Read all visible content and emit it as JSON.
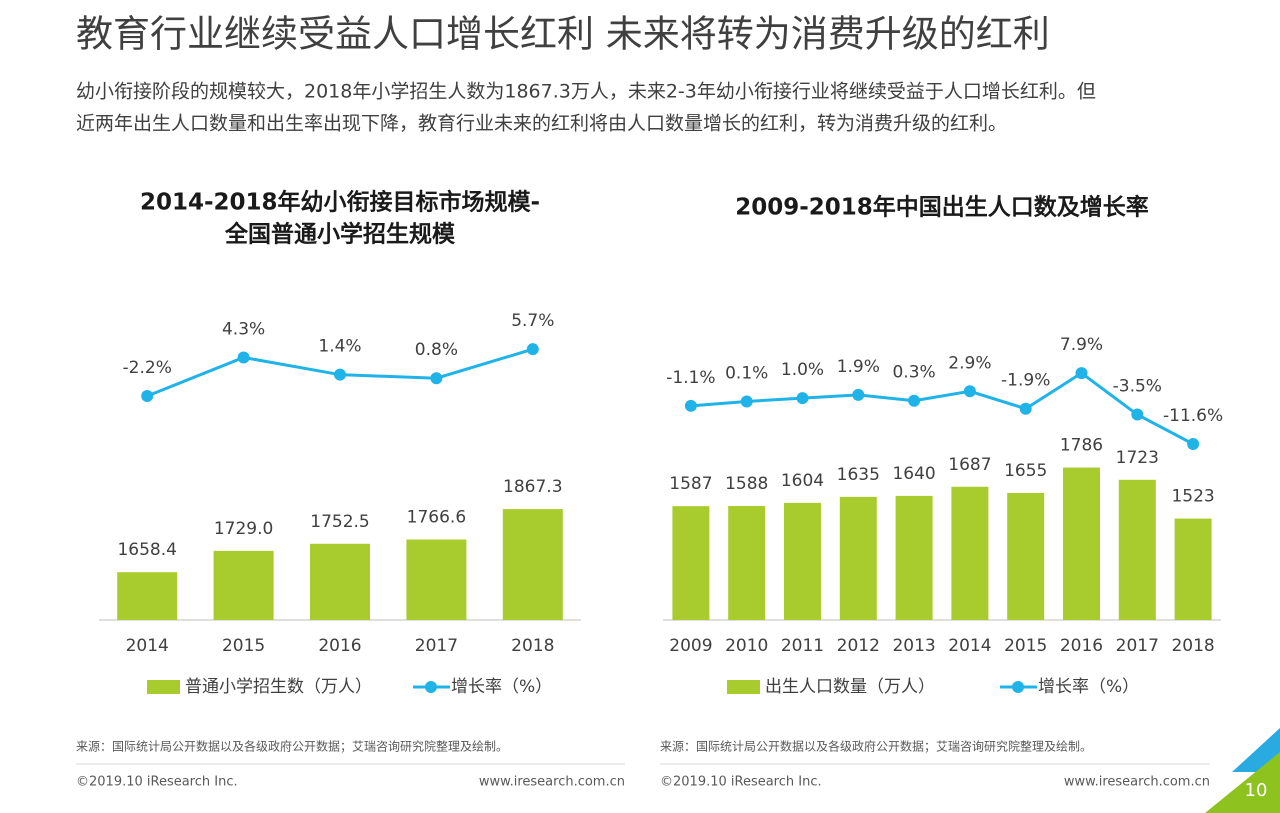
{
  "header": {
    "title": "教育行业继续受益人口增长红利 未来将转为消费升级的红利",
    "subtitle": [
      "幼小衔接阶段的规模较大，2018年小学招生人数为1867.3万人，未来2-3年幼小衔接行业将继续受益于人口增长红利。但",
      "近两年出生人口数量和出生率出现下降，教育行业未来的红利将由人口数量增长的红利，转为消费升级的红利。"
    ]
  },
  "chart_data": [
    {
      "type": "bar",
      "title": [
        "2014-2018年幼小衔接目标市场规模-",
        "全国普通小学招生规模"
      ],
      "categories": [
        "2014",
        "2015",
        "2016",
        "2017",
        "2018"
      ],
      "ylim": [
        1500,
        2560
      ],
      "y2lim": [
        -40,
        14
      ],
      "series": [
        {
          "name": "普通小学招生数（万人）",
          "type": "bar",
          "color": "#a8cc2e",
          "values": [
            1658.4,
            1729.0,
            1752.5,
            1766.6,
            1867.3
          ],
          "value_labels": [
            "1658.4",
            "1729.0",
            "1752.5",
            "1766.6",
            "1867.3"
          ]
        },
        {
          "name": "增长率（%）",
          "type": "line",
          "axis": "y2",
          "color": "#1fb3e8",
          "values": [
            -2.2,
            4.3,
            1.4,
            0.8,
            5.7
          ],
          "value_labels": [
            "-2.2%",
            "4.3%",
            "1.4%",
            "0.8%",
            "5.7%"
          ]
        }
      ]
    },
    {
      "type": "bar",
      "title": [
        "2009-2018年中国出生人口数及增长率"
      ],
      "categories": [
        "2009",
        "2010",
        "2011",
        "2012",
        "2013",
        "2014",
        "2015",
        "2016",
        "2017",
        "2018"
      ],
      "ylim": [
        1000,
        2650
      ],
      "y2lim": [
        -60,
        28
      ],
      "series": [
        {
          "name": "出生人口数量（万人）",
          "type": "bar",
          "color": "#a8cc2e",
          "values": [
            1587,
            1588,
            1604,
            1635,
            1640,
            1687,
            1655,
            1786,
            1723,
            1523
          ]
        },
        {
          "name": "增长率（%）",
          "type": "line",
          "axis": "y2",
          "color": "#1fb3e8",
          "values": [
            -1.1,
            0.1,
            1.0,
            1.9,
            0.3,
            2.9,
            -1.9,
            7.9,
            -3.5,
            -11.6
          ],
          "value_labels": [
            "-1.1%",
            "0.1%",
            "1.0%",
            "1.9%",
            "0.3%",
            "2.9%",
            "-1.9%",
            "7.9%",
            "-3.5%",
            "-11.6%"
          ]
        }
      ]
    }
  ],
  "panels": [
    {
      "source": "来源：国际统计局公开数据以及各级政府公开数据；艾瑞咨询研究院整理及绘制。",
      "copyright": "©2019.10 iResearch Inc.",
      "website": "www.iresearch.com.cn"
    },
    {
      "source": "来源：国际统计局公开数据以及各级政府公开数据；艾瑞咨询研究院整理及绘制。",
      "copyright": "©2019.10 iResearch Inc.",
      "website": "www.iresearch.com.cn"
    }
  ],
  "page_number": "10"
}
